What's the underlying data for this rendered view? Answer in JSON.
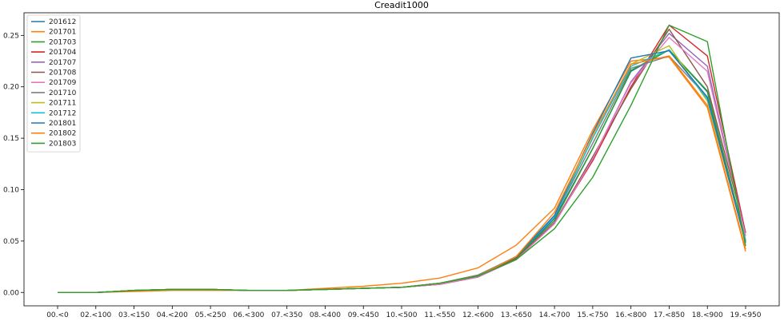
{
  "chart_data": {
    "type": "line",
    "title": "Creadit1000",
    "xlabel": "",
    "ylabel": "",
    "ylim": [
      -0.013,
      0.272
    ],
    "yticks": [
      0.0,
      0.05,
      0.1,
      0.15,
      0.2,
      0.25
    ],
    "ytick_labels": [
      "0.00",
      "0.05",
      "0.10",
      "0.15",
      "0.20",
      "0.25"
    ],
    "grid": false,
    "legend_position": "top-left",
    "categories": [
      "00.<0",
      "02.<100",
      "03.<150",
      "04.<200",
      "05.<250",
      "06.<300",
      "07.<350",
      "08.<400",
      "09.<450",
      "10.<500",
      "11.<550",
      "12.<600",
      "13.<650",
      "14.<700",
      "15.<750",
      "16.<800",
      "17.<850",
      "18.<900",
      "19.<950"
    ],
    "series": [
      {
        "name": "201612",
        "color": "#1f77b4",
        "values": [
          0,
          0,
          0.002,
          0.003,
          0.003,
          0.002,
          0.002,
          0.003,
          0.004,
          0.005,
          0.009,
          0.016,
          0.034,
          0.072,
          0.14,
          0.215,
          0.236,
          0.195,
          0.05
        ]
      },
      {
        "name": "201701",
        "color": "#ff7f0e",
        "values": [
          0,
          0,
          0.001,
          0.002,
          0.002,
          0.002,
          0.002,
          0.004,
          0.006,
          0.009,
          0.014,
          0.024,
          0.046,
          0.082,
          0.158,
          0.225,
          0.229,
          0.18,
          0.04
        ]
      },
      {
        "name": "201703",
        "color": "#2ca02c",
        "values": [
          0,
          0,
          0.002,
          0.003,
          0.003,
          0.002,
          0.002,
          0.003,
          0.004,
          0.005,
          0.009,
          0.017,
          0.034,
          0.07,
          0.14,
          0.216,
          0.236,
          0.196,
          0.051
        ]
      },
      {
        "name": "201704",
        "color": "#d62728",
        "values": [
          0,
          0,
          0.002,
          0.003,
          0.003,
          0.002,
          0.002,
          0.003,
          0.004,
          0.005,
          0.008,
          0.015,
          0.033,
          0.068,
          0.128,
          0.2,
          0.26,
          0.23,
          0.058
        ]
      },
      {
        "name": "201707",
        "color": "#9467bd",
        "values": [
          0,
          0,
          0.002,
          0.003,
          0.003,
          0.002,
          0.002,
          0.003,
          0.004,
          0.005,
          0.008,
          0.015,
          0.032,
          0.067,
          0.13,
          0.205,
          0.252,
          0.22,
          0.055
        ]
      },
      {
        "name": "201708",
        "color": "#8c564b",
        "values": [
          0,
          0,
          0.002,
          0.003,
          0.003,
          0.002,
          0.002,
          0.003,
          0.004,
          0.005,
          0.008,
          0.015,
          0.033,
          0.068,
          0.132,
          0.198,
          0.256,
          0.2,
          0.058
        ]
      },
      {
        "name": "201709",
        "color": "#e377c2",
        "values": [
          0,
          0,
          0.002,
          0.003,
          0.003,
          0.002,
          0.002,
          0.003,
          0.004,
          0.005,
          0.008,
          0.015,
          0.032,
          0.067,
          0.13,
          0.204,
          0.248,
          0.215,
          0.055
        ]
      },
      {
        "name": "201710",
        "color": "#7f7f7f",
        "values": [
          0,
          0,
          0.002,
          0.003,
          0.003,
          0.002,
          0.002,
          0.003,
          0.004,
          0.005,
          0.009,
          0.017,
          0.035,
          0.074,
          0.145,
          0.218,
          0.23,
          0.19,
          0.05
        ]
      },
      {
        "name": "201711",
        "color": "#bcbd22",
        "values": [
          0,
          0,
          0.002,
          0.003,
          0.003,
          0.002,
          0.002,
          0.003,
          0.004,
          0.005,
          0.009,
          0.016,
          0.035,
          0.075,
          0.15,
          0.222,
          0.24,
          0.186,
          0.049
        ]
      },
      {
        "name": "201712",
        "color": "#17becf",
        "values": [
          0,
          0,
          0.002,
          0.003,
          0.003,
          0.002,
          0.002,
          0.003,
          0.004,
          0.005,
          0.009,
          0.016,
          0.035,
          0.074,
          0.15,
          0.22,
          0.236,
          0.188,
          0.05
        ]
      },
      {
        "name": "201801",
        "color": "#1f77b4",
        "values": [
          0,
          0,
          0.002,
          0.003,
          0.003,
          0.002,
          0.002,
          0.003,
          0.004,
          0.005,
          0.009,
          0.016,
          0.035,
          0.075,
          0.155,
          0.228,
          0.235,
          0.19,
          0.048
        ]
      },
      {
        "name": "201802",
        "color": "#ff7f0e",
        "values": [
          0,
          0,
          0.002,
          0.003,
          0.003,
          0.002,
          0.002,
          0.003,
          0.004,
          0.005,
          0.009,
          0.016,
          0.035,
          0.078,
          0.153,
          0.222,
          0.23,
          0.182,
          0.042
        ]
      },
      {
        "name": "201803",
        "color": "#2ca02c",
        "values": [
          0,
          0,
          0.002,
          0.003,
          0.003,
          0.002,
          0.002,
          0.003,
          0.004,
          0.005,
          0.009,
          0.016,
          0.032,
          0.062,
          0.112,
          0.182,
          0.26,
          0.244,
          0.045
        ]
      }
    ]
  }
}
